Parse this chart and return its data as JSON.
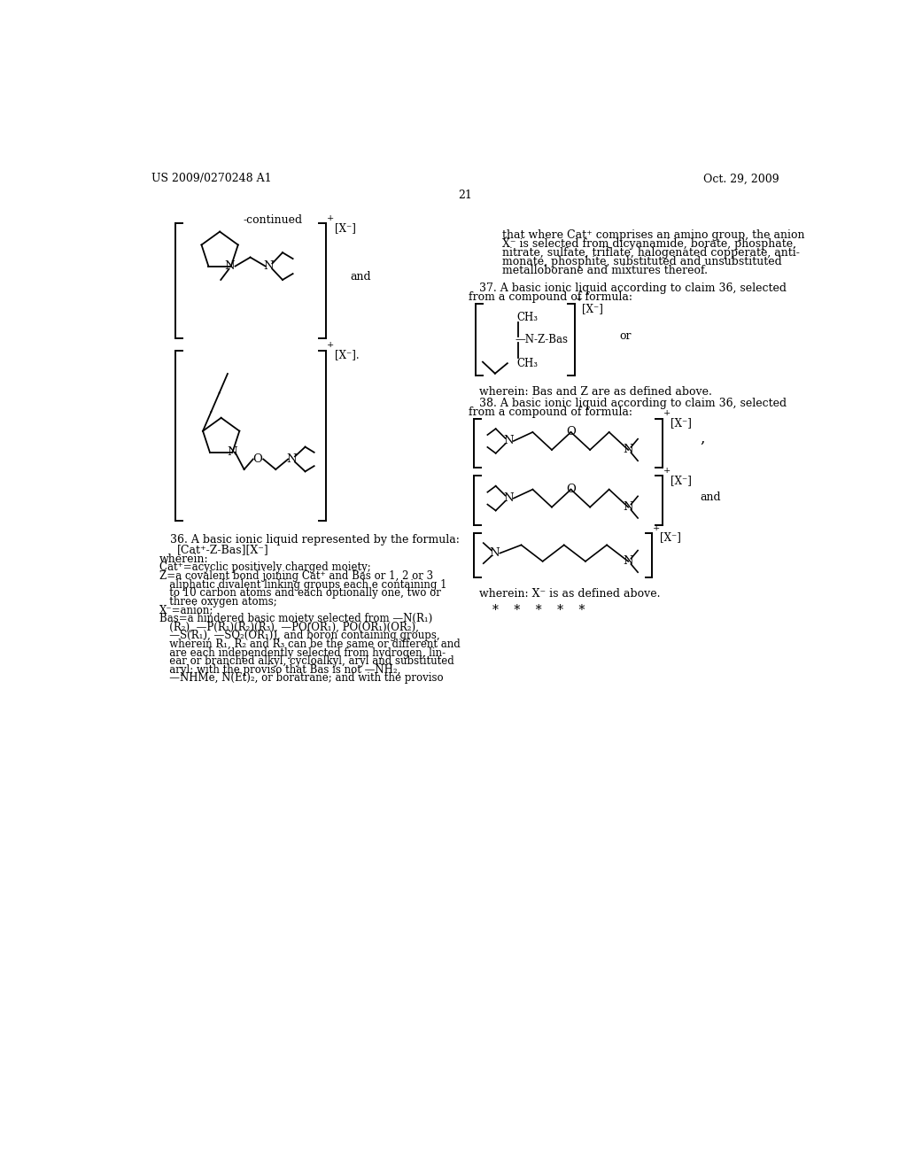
{
  "page_header_left": "US 2009/0270248 A1",
  "page_header_right": "Oct. 29, 2009",
  "page_number": "21",
  "background_color": "#ffffff",
  "text_color": "#000000"
}
